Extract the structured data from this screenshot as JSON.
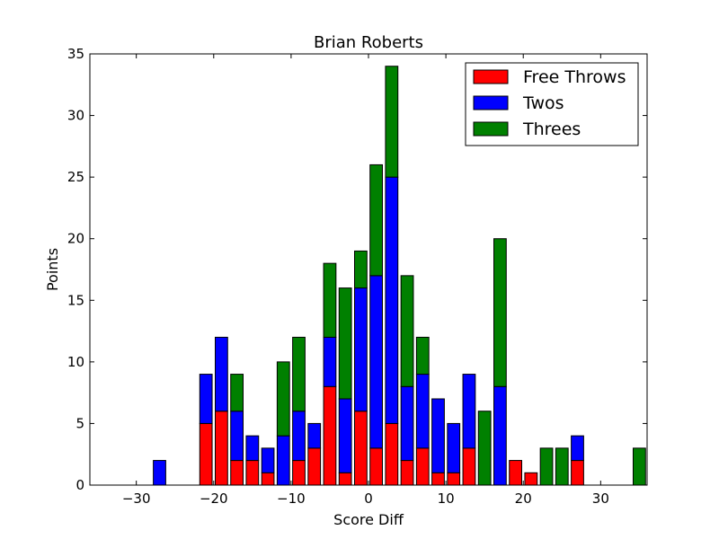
{
  "chart_data": {
    "type": "bar",
    "stacked": true,
    "title": "Brian Roberts",
    "xlabel": "Score Diff",
    "ylabel": "Points",
    "xlim": [
      -36,
      36
    ],
    "ylim": [
      0,
      35
    ],
    "xticks": [
      -30,
      -20,
      -10,
      0,
      10,
      20,
      30
    ],
    "xtick_labels": [
      "−30",
      "−20",
      "−10",
      "0",
      "10",
      "20",
      "30"
    ],
    "yticks": [
      0,
      5,
      10,
      15,
      20,
      25,
      30,
      35
    ],
    "ytick_labels": [
      "0",
      "5",
      "10",
      "15",
      "20",
      "25",
      "30",
      "35"
    ],
    "grid": false,
    "legend_position": "top-right",
    "bar_width": 1.6,
    "x": [
      -35,
      -33,
      -31,
      -29,
      -27,
      -25,
      -23,
      -21,
      -19,
      -17,
      -15,
      -13,
      -11,
      -9,
      -7,
      -5,
      -3,
      -1,
      1,
      3,
      5,
      7,
      9,
      11,
      13,
      15,
      17,
      19,
      21,
      23,
      25,
      27,
      29,
      31,
      33,
      35
    ],
    "series": [
      {
        "name": "Free Throws",
        "color": "#ff0000",
        "values": [
          0,
          0,
          0,
          0,
          0,
          0,
          0,
          5,
          6,
          2,
          2,
          1,
          0,
          2,
          3,
          8,
          1,
          6,
          3,
          5,
          2,
          3,
          1,
          1,
          3,
          0,
          0,
          2,
          1,
          0,
          0,
          2,
          0,
          0,
          0,
          0
        ]
      },
      {
        "name": "Twos",
        "color": "#0000ff",
        "values": [
          0,
          0,
          0,
          0,
          2,
          0,
          0,
          4,
          6,
          4,
          2,
          2,
          4,
          4,
          2,
          4,
          6,
          10,
          14,
          20,
          6,
          6,
          6,
          4,
          6,
          0,
          8,
          0,
          0,
          0,
          0,
          2,
          0,
          0,
          0,
          0
        ]
      },
      {
        "name": "Threes",
        "color": "#008000",
        "values": [
          0,
          0,
          0,
          0,
          0,
          0,
          0,
          0,
          0,
          3,
          0,
          0,
          6,
          6,
          0,
          6,
          9,
          3,
          9,
          9,
          9,
          3,
          0,
          0,
          0,
          6,
          12,
          0,
          0,
          3,
          3,
          0,
          0,
          0,
          0,
          3
        ]
      }
    ]
  }
}
